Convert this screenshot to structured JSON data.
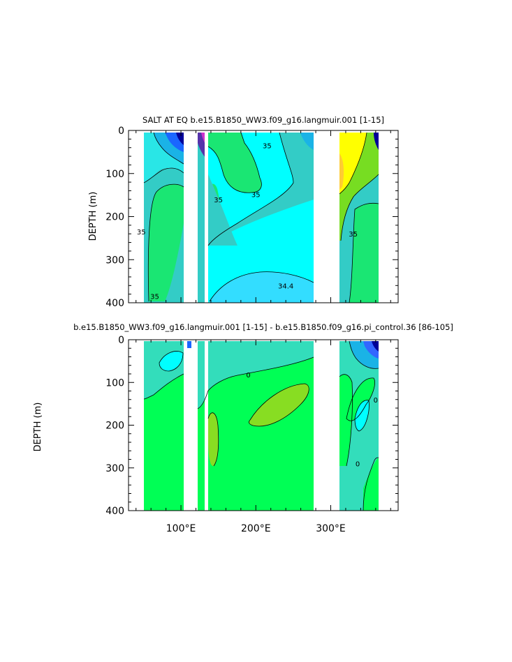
{
  "chart_data": [
    {
      "type": "contour",
      "title": "SALT AT EQ  b.e15.B1850_WW3.f09_g16.langmuir.001  [1-15]",
      "ylabel": "DEPTH (m)",
      "xlabel": "",
      "xlim": [
        30,
        390
      ],
      "ylim": [
        0,
        400
      ],
      "y_inverted": true,
      "x_ticks": [],
      "y_ticks": [
        "0",
        "100",
        "200",
        "300",
        "400"
      ],
      "contour_labels": [
        {
          "text": "35",
          "x": 215,
          "y": 35
        },
        {
          "text": "35",
          "x": 200,
          "y": 148
        },
        {
          "text": "35",
          "x": 150,
          "y": 160
        },
        {
          "text": "35",
          "x": 47,
          "y": 235
        },
        {
          "text": "35",
          "x": 330,
          "y": 240
        },
        {
          "text": "34.4",
          "x": 240,
          "y": 360
        },
        {
          "text": "35",
          "x": 65,
          "y": 385
        }
      ]
    },
    {
      "type": "contour",
      "title": "b.e15.B1850_WW3.f09_g16.langmuir.001  [1-15]  -  b.e15.B1850.f09_g16.pi_control.36  [86-105]",
      "ylabel": "DEPTH (m)",
      "xlabel": "",
      "xlim": [
        30,
        390
      ],
      "ylim": [
        0,
        400
      ],
      "y_inverted": true,
      "x_ticks": [
        "100°E",
        "200°E",
        "300°E"
      ],
      "y_ticks": [
        "0",
        "100",
        "200",
        "300",
        "400"
      ],
      "contour_labels": [
        {
          "text": "0",
          "x": 190,
          "y": 82
        },
        {
          "text": "0",
          "x": 360,
          "y": 140
        },
        {
          "text": "0",
          "x": 336,
          "y": 290
        }
      ]
    }
  ]
}
